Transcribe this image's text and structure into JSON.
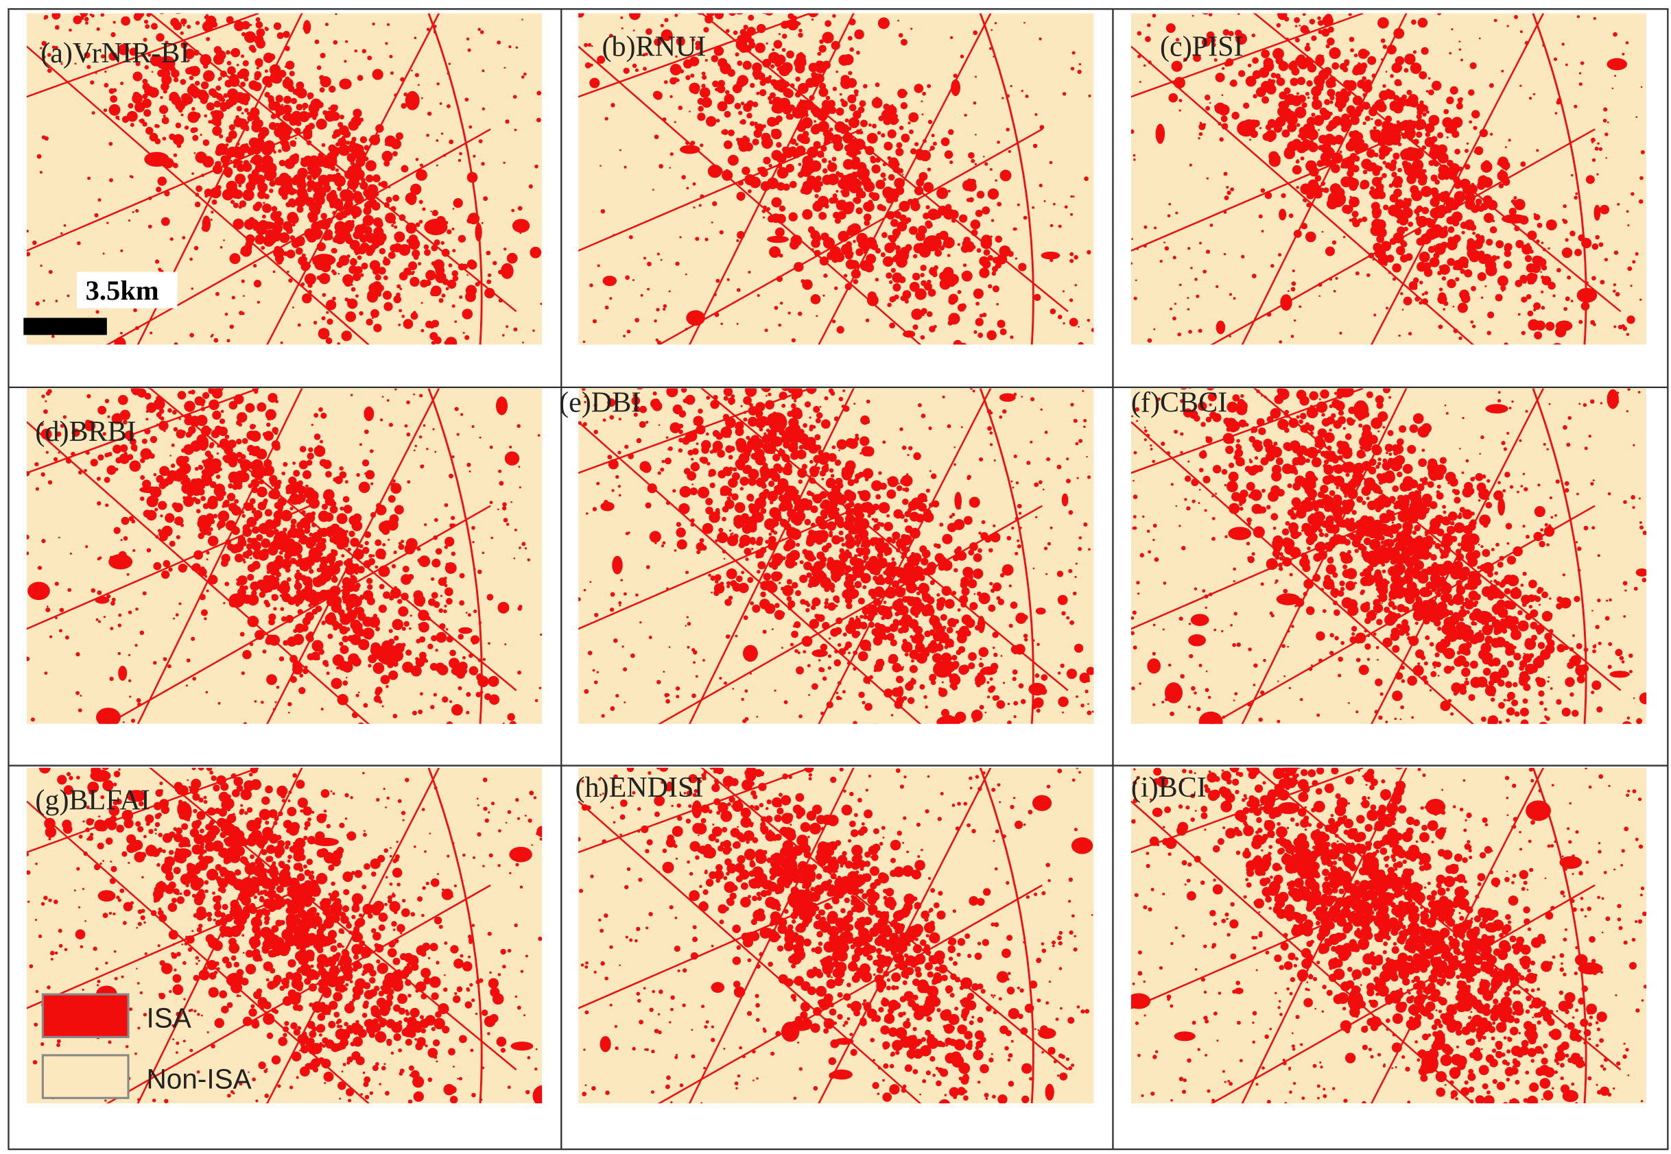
{
  "panels": [
    {
      "label": "(a)VrNIR-BI"
    },
    {
      "label": "(b)RNUI"
    },
    {
      "label": "(c)PISI"
    },
    {
      "label": "(d)BRBI"
    },
    {
      "label": "(e)DBI"
    },
    {
      "label": "(f)CBCI"
    },
    {
      "label": "(g)BLFAI"
    },
    {
      "label": "(h)ENDISI"
    },
    {
      "label": "(i)BCI"
    }
  ],
  "scale_bar": {
    "label": "3.5km"
  },
  "legend": [
    {
      "label": "ISA",
      "color": "#f20d0d"
    },
    {
      "label": "Non-ISA",
      "color": "#fce8bf"
    }
  ]
}
